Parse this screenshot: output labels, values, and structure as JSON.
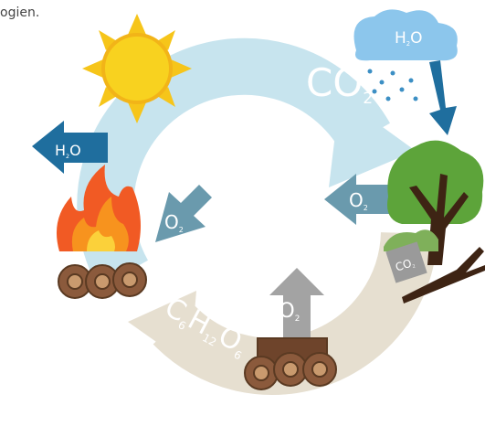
{
  "caption_fragment": "ogien.",
  "labels": {
    "cloud_h2o": [
      "H",
      "2",
      "O"
    ],
    "big_co2": [
      "CO",
      "2"
    ],
    "left_h2o": [
      "H",
      "2",
      "O"
    ],
    "tree_o2": [
      "O",
      "2"
    ],
    "fire_o2": [
      "O",
      "2"
    ],
    "up_co2": [
      "CO",
      "2"
    ],
    "tree_co2": [
      "CO",
      "2"
    ],
    "glucose": [
      "C",
      "6",
      "H",
      "12",
      "O",
      "6"
    ]
  }
}
